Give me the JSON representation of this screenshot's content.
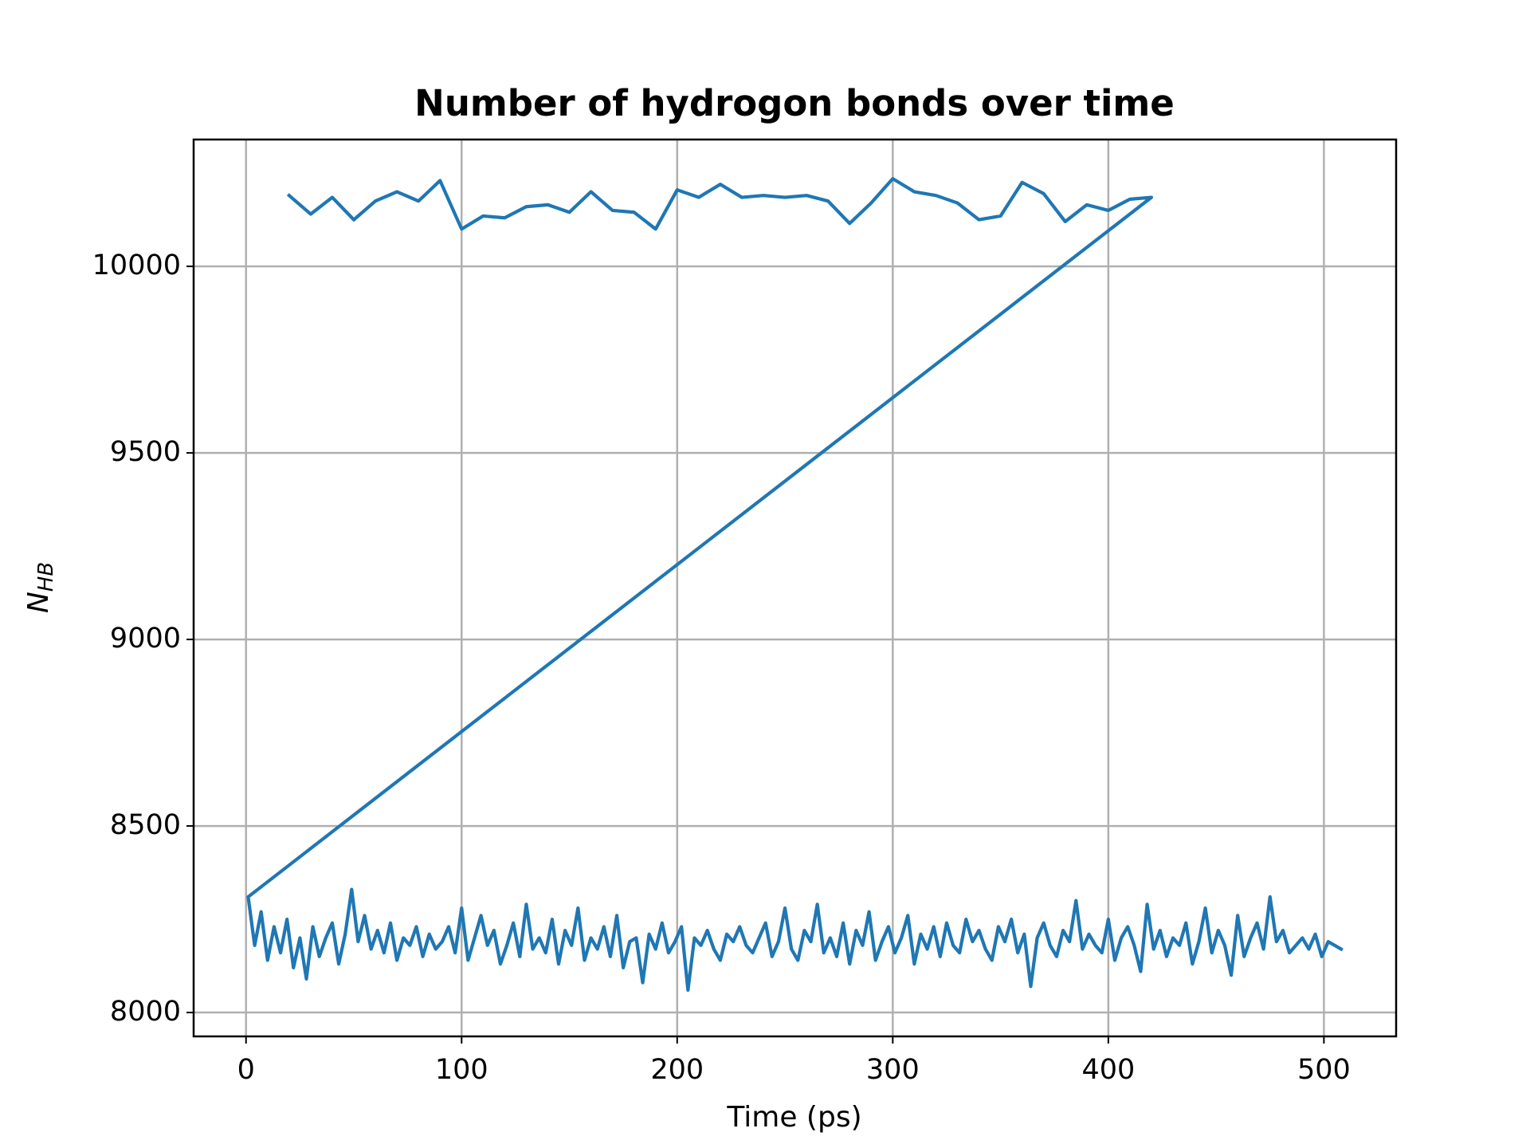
{
  "chart_data": {
    "type": "line",
    "title": "Number of hydrogon bonds over time",
    "xlabel": "Time (ps)",
    "ylabel": "N",
    "ylabel_subscript": "HB",
    "color": "#1f77b4",
    "grid": true,
    "xlim": [
      -24.3,
      533.5
    ],
    "ylim": [
      7936,
      10340
    ],
    "xticks": [
      0,
      100,
      200,
      300,
      400,
      500
    ],
    "yticks": [
      8000,
      8500,
      9000,
      9500,
      10000
    ],
    "x": [
      20,
      30,
      40,
      50,
      60,
      70,
      80,
      90,
      100,
      110,
      120,
      130,
      140,
      150,
      160,
      170,
      180,
      190,
      200,
      210,
      220,
      230,
      240,
      250,
      260,
      270,
      280,
      290,
      300,
      310,
      320,
      330,
      340,
      350,
      360,
      370,
      380,
      390,
      400,
      410,
      420,
      1,
      4,
      7,
      10,
      13,
      16,
      19,
      22,
      25,
      28,
      31,
      34,
      37,
      40,
      43,
      46,
      49,
      52,
      55,
      58,
      61,
      64,
      67,
      70,
      73,
      76,
      79,
      82,
      85,
      88,
      91,
      94,
      97,
      100,
      103,
      106,
      109,
      112,
      115,
      118,
      121,
      124,
      127,
      130,
      133,
      136,
      139,
      142,
      145,
      148,
      151,
      154,
      157,
      160,
      163,
      166,
      169,
      172,
      175,
      178,
      181,
      184,
      187,
      190,
      193,
      196,
      199,
      202,
      205,
      208,
      211,
      214,
      217,
      220,
      223,
      226,
      229,
      232,
      235,
      238,
      241,
      244,
      247,
      250,
      253,
      256,
      259,
      262,
      265,
      268,
      271,
      274,
      277,
      280,
      283,
      286,
      289,
      292,
      295,
      298,
      301,
      304,
      307,
      310,
      313,
      316,
      319,
      322,
      325,
      328,
      331,
      334,
      337,
      340,
      343,
      346,
      349,
      352,
      355,
      358,
      361,
      364,
      367,
      370,
      373,
      376,
      379,
      382,
      385,
      388,
      391,
      394,
      397,
      400,
      403,
      406,
      409,
      412,
      415,
      418,
      421,
      424,
      427,
      430,
      433,
      436,
      439,
      442,
      445,
      448,
      451,
      454,
      457,
      460,
      463,
      466,
      469,
      472,
      475,
      478,
      481,
      484,
      487,
      490,
      493,
      496,
      499,
      502,
      505,
      508
    ],
    "values": [
      10190,
      10140,
      10185,
      10125,
      10175,
      10200,
      10175,
      10230,
      10100,
      10135,
      10130,
      10160,
      10165,
      10145,
      10200,
      10150,
      10145,
      10100,
      10205,
      10185,
      10220,
      10185,
      10190,
      10185,
      10190,
      10175,
      10115,
      10170,
      10235,
      10200,
      10190,
      10170,
      10125,
      10135,
      10225,
      10195,
      10120,
      10165,
      10150,
      10180,
      10185,
      8310,
      8180,
      8270,
      8140,
      8230,
      8160,
      8250,
      8120,
      8200,
      8090,
      8230,
      8150,
      8200,
      8240,
      8130,
      8210,
      8330,
      8190,
      8260,
      8170,
      8220,
      8160,
      8240,
      8140,
      8200,
      8180,
      8230,
      8150,
      8210,
      8170,
      8190,
      8230,
      8160,
      8280,
      8140,
      8200,
      8260,
      8180,
      8220,
      8130,
      8180,
      8240,
      8150,
      8290,
      8170,
      8200,
      8160,
      8250,
      8130,
      8220,
      8180,
      8280,
      8140,
      8200,
      8170,
      8230,
      8150,
      8260,
      8120,
      8190,
      8200,
      8080,
      8210,
      8170,
      8240,
      8160,
      8190,
      8230,
      8060,
      8200,
      8180,
      8220,
      8170,
      8140,
      8210,
      8190,
      8230,
      8180,
      8160,
      8200,
      8240,
      8150,
      8190,
      8280,
      8170,
      8140,
      8220,
      8190,
      8290,
      8160,
      8200,
      8150,
      8240,
      8130,
      8220,
      8180,
      8270,
      8140,
      8190,
      8230,
      8160,
      8200,
      8260,
      8130,
      8210,
      8170,
      8230,
      8150,
      8240,
      8180,
      8160,
      8250,
      8190,
      8220,
      8170,
      8140,
      8230,
      8190,
      8250,
      8160,
      8210,
      8070,
      8200,
      8240,
      8180,
      8150,
      8220,
      8190,
      8300,
      8170,
      8210,
      8180,
      8160,
      8250,
      8140,
      8200,
      8230,
      8180,
      8110,
      8290,
      8170,
      8220,
      8150,
      8200,
      8180,
      8240,
      8130,
      8190,
      8280,
      8160,
      8220,
      8180,
      8100,
      8260,
      8150,
      8200,
      8240,
      8170,
      8310,
      8190,
      8220,
      8160,
      8180,
      8200,
      8170,
      8210,
      8150,
      8190,
      8180,
      8170
    ]
  }
}
